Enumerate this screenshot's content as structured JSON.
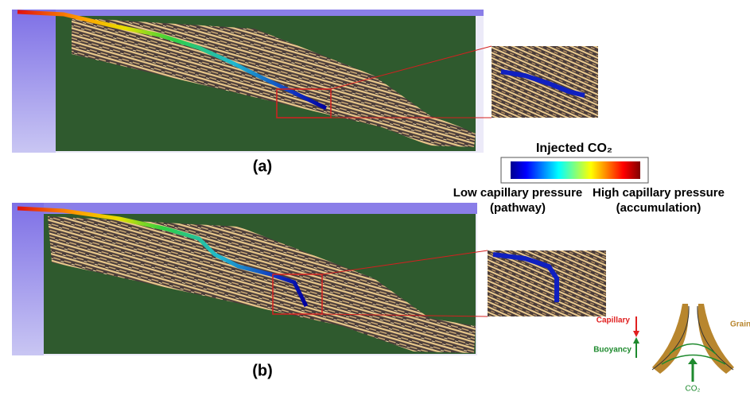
{
  "figure": {
    "panels": [
      {
        "label": "(a)"
      },
      {
        "label": "(b)"
      }
    ],
    "colorbar": {
      "title": "Injected CO₂",
      "low_label": "Low capillary pressure",
      "low_note": "(pathway)",
      "high_label": "High capillary pressure",
      "high_note": "(accumulation)"
    },
    "schematic": {
      "capillary": "Capillary",
      "buoyancy": "Buoyancy",
      "grain": "Grain",
      "co2": "CO₂"
    }
  }
}
